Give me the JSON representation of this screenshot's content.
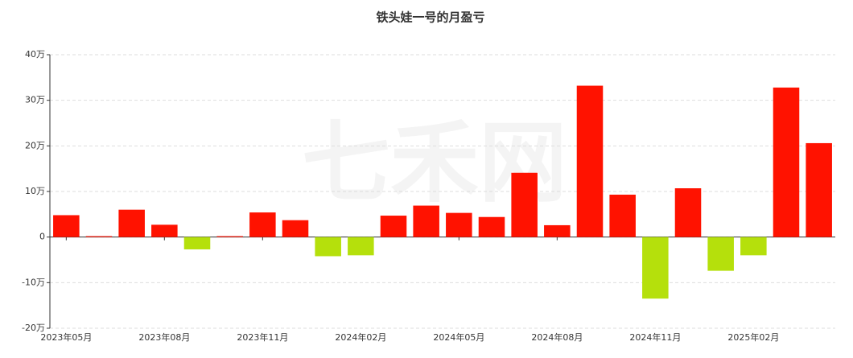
{
  "chart_data": {
    "type": "bar",
    "title": "铁头娃一号的月盈亏",
    "watermark": "七禾网",
    "categories": [
      "2023年05月",
      null,
      null,
      "2023年08月",
      null,
      null,
      "2023年11月",
      null,
      null,
      "2024年02月",
      null,
      null,
      "2024年05月",
      null,
      null,
      "2024年08月",
      null,
      null,
      "2024年11月",
      null,
      null,
      "2025年02月",
      null,
      null
    ],
    "values": [
      4.8,
      0.2,
      6.0,
      2.7,
      -2.7,
      0.2,
      5.4,
      3.7,
      -4.2,
      -4.0,
      4.7,
      6.9,
      5.3,
      4.4,
      14.1,
      2.6,
      33.2,
      9.3,
      -13.5,
      10.7,
      -7.4,
      -4.0,
      32.8,
      20.6
    ],
    "positive_color": "#ff1200",
    "negative_color": "#b5e00c",
    "ylim": [
      -20,
      40
    ],
    "yticks": [
      {
        "value": -20,
        "label": "-20万"
      },
      {
        "value": -10,
        "label": "-10万"
      },
      {
        "value": 0,
        "label": "0"
      },
      {
        "value": 10,
        "label": "10万"
      },
      {
        "value": 20,
        "label": "20万"
      },
      {
        "value": 30,
        "label": "30万"
      },
      {
        "value": 40,
        "label": "40万"
      }
    ],
    "grid": true
  }
}
